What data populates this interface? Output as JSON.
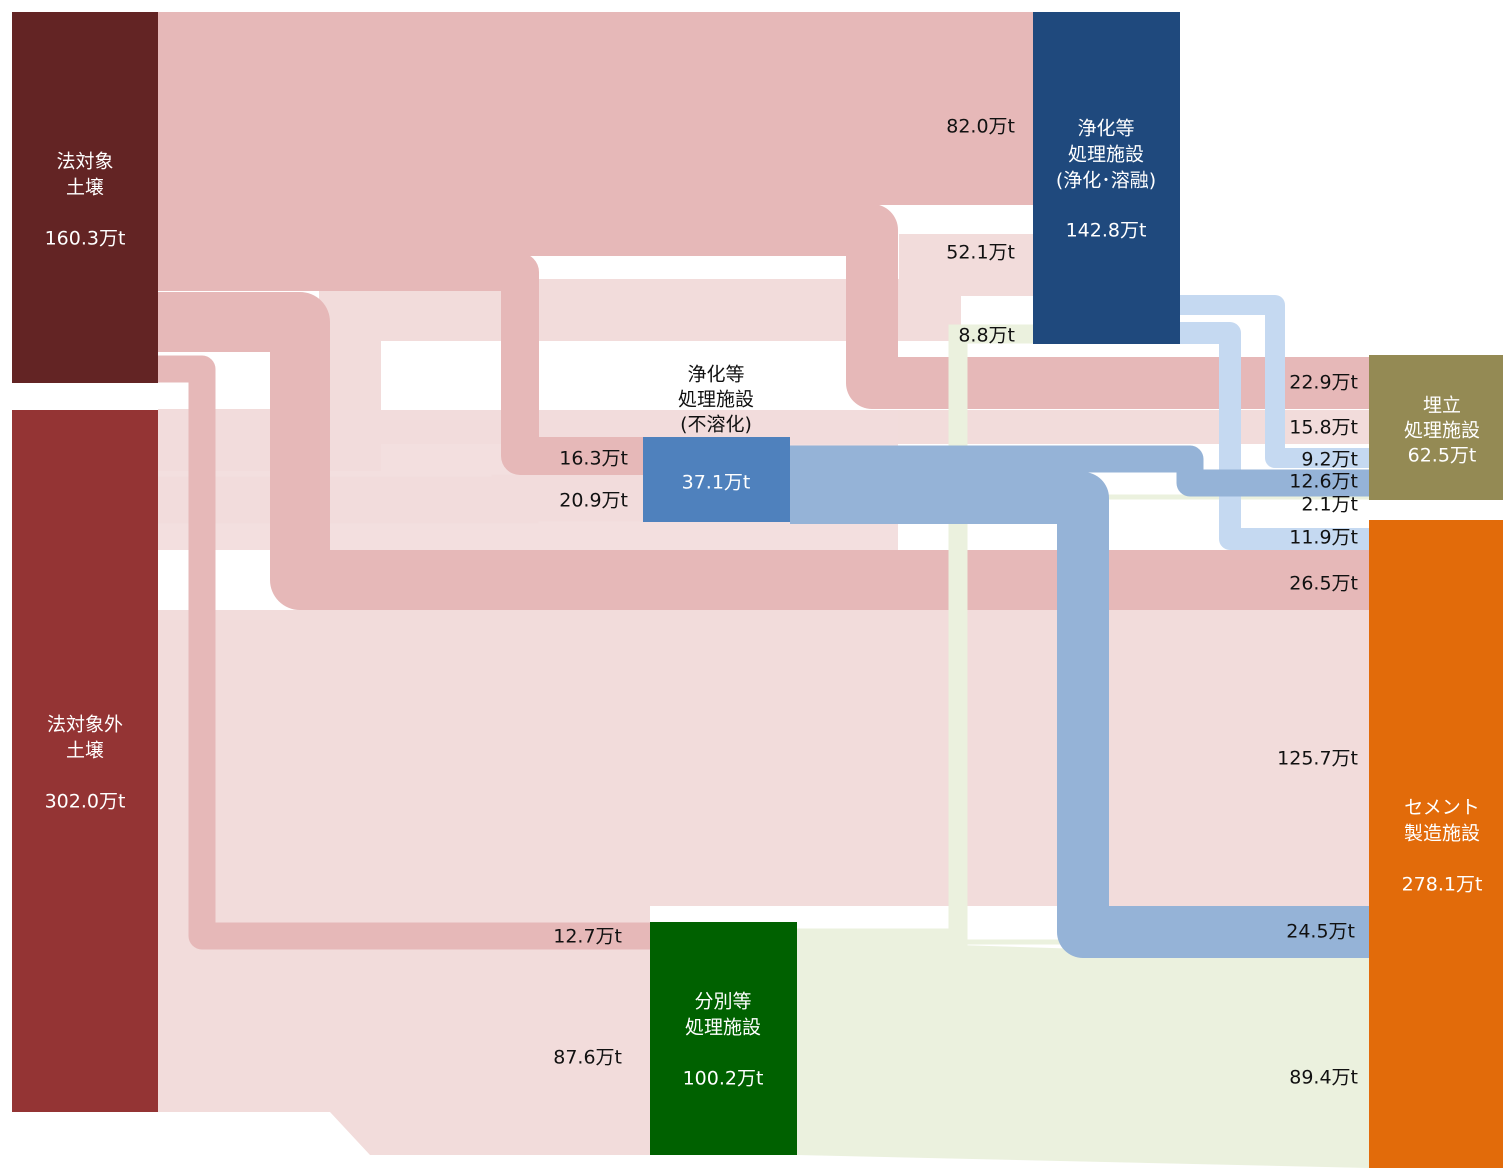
{
  "nodes": [
    {
      "lines": [
        "法対象",
        "土壌"
      ],
      "value": "160.3万t"
    },
    {
      "lines": [
        "法対象外",
        "土壌"
      ],
      "value": "302.0万t"
    },
    {
      "lines": [
        "浄化等",
        "処理施設",
        "(浄化･溶融)"
      ],
      "value": "142.8万t"
    },
    {
      "lines": [
        "浄化等",
        "処理施設",
        "(不溶化)"
      ],
      "value": "37.1万t"
    },
    {
      "lines": [
        "分別等",
        "処理施設"
      ],
      "value": "100.2万t"
    },
    {
      "lines": [
        "埋立",
        "処理施設"
      ],
      "value": "62.5万t"
    },
    {
      "lines": [
        "セメント",
        "製造施設"
      ],
      "value": "278.1万t"
    }
  ],
  "links": [
    "82.0万t",
    "52.1万t",
    "8.8万t",
    "16.3万t",
    "20.9万t",
    "22.9万t",
    "15.8万t",
    "9.2万t",
    "12.6万t",
    "2.1万t",
    "11.9万t",
    "26.5万t",
    "125.7万t",
    "24.5万t",
    "89.4万t",
    "12.7万t",
    "87.6万t"
  ]
}
